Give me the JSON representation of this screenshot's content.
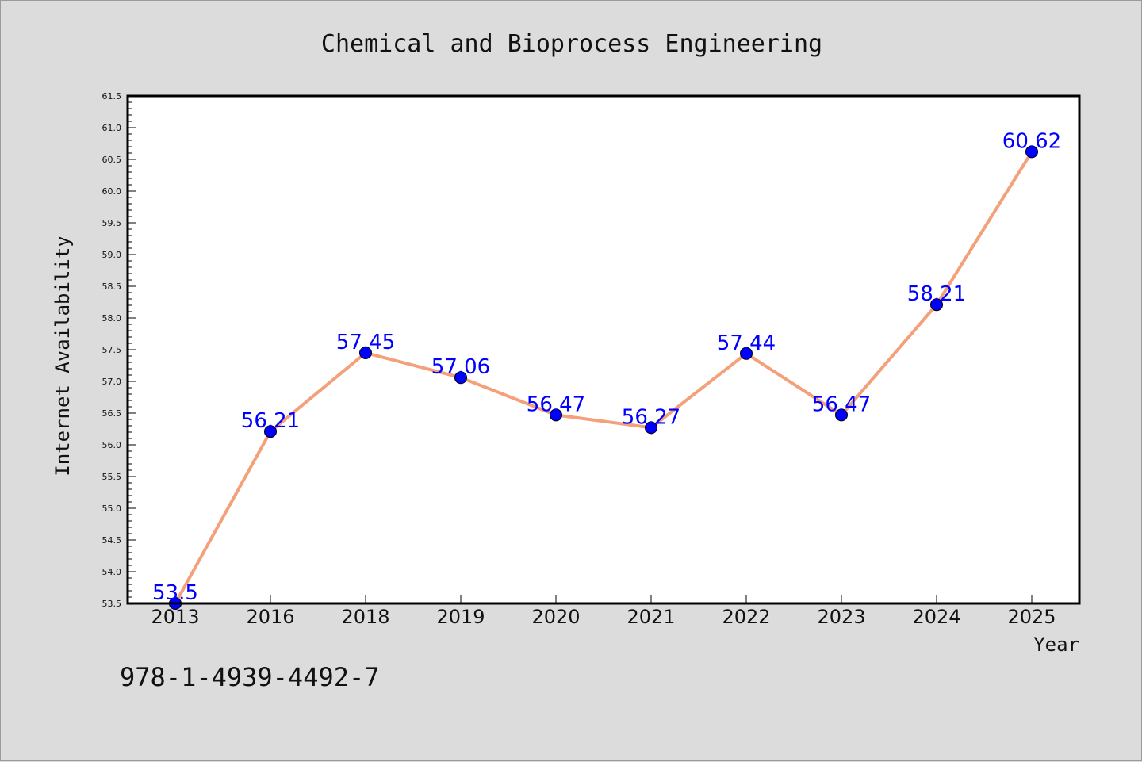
{
  "chart_data": {
    "type": "line",
    "title": "Chemical and Bioprocess Engineering",
    "xlabel": "Year",
    "ylabel": "Internet Availability",
    "categories": [
      "2013",
      "2016",
      "2018",
      "2019",
      "2020",
      "2021",
      "2022",
      "2023",
      "2024",
      "2025"
    ],
    "series": [
      {
        "values": [
          53.5,
          56.21,
          57.45,
          57.06,
          56.47,
          56.27,
          57.44,
          56.47,
          58.21,
          60.62
        ],
        "labels": [
          "53.5",
          "56.21",
          "57.45",
          "57.06",
          "56.47",
          "56.27",
          "57.44",
          "56.47",
          "58.21",
          "60.62"
        ],
        "line_color": "#f4a07a",
        "marker_color": "#0000ff"
      }
    ],
    "ylim": [
      53.5,
      61.5
    ],
    "yticks": [
      "53.5",
      "54.0",
      "54.5",
      "55.0",
      "55.5",
      "56.0",
      "56.5",
      "57.0",
      "57.5",
      "58.0",
      "58.5",
      "59.0",
      "59.5",
      "60.0",
      "60.5",
      "61.0",
      "61.5"
    ],
    "grid": false,
    "legend": "none"
  },
  "footer": {
    "isbn": "978-1-4939-4492-7"
  }
}
